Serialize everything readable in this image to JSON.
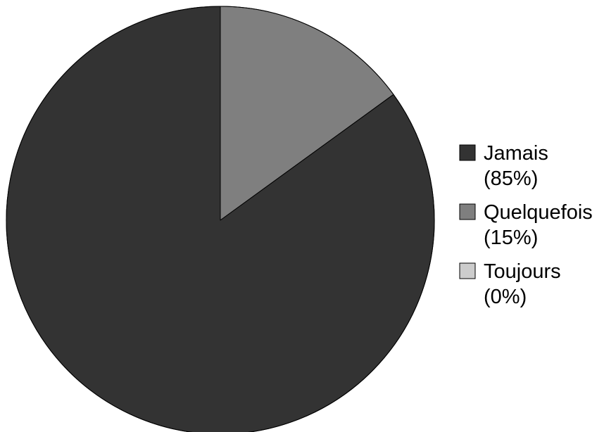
{
  "chart_data": {
    "type": "pie",
    "title": "",
    "slices": [
      {
        "name": "Jamais",
        "percent_label": "(85%)",
        "value": 85,
        "color": "#333333"
      },
      {
        "name": "Quelquefois",
        "percent_label": "(15%)",
        "value": 15,
        "color": "#7f7f7f"
      },
      {
        "name": "Toujours",
        "percent_label": "(0%)",
        "value": 0,
        "color": "#cccccc"
      }
    ],
    "start_angle": "12 o'clock",
    "direction": "clockwise",
    "legend_position": "right"
  }
}
